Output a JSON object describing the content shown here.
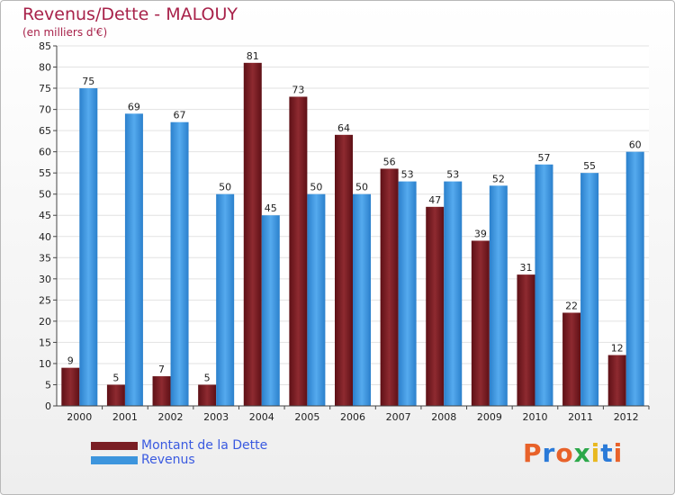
{
  "header": {
    "title": "Revenus/Dette - MALOUY",
    "subtitle": "(en milliers d'€)"
  },
  "logo": {
    "text": "Proxiti",
    "colors": [
      "#e8622a",
      "#2a7ad8",
      "#e8622a",
      "#2ca84a",
      "#e8b820",
      "#2a7ad8",
      "#e8622a"
    ]
  },
  "chart_data": {
    "type": "bar",
    "title": "Revenus/Dette - MALOUY",
    "subtitle": "(en milliers d'€)",
    "categories": [
      "2000",
      "2001",
      "2002",
      "2003",
      "2004",
      "2005",
      "2006",
      "2007",
      "2008",
      "2009",
      "2010",
      "2011",
      "2012"
    ],
    "series": [
      {
        "name": "Montant de la Dette",
        "values": [
          9,
          5,
          7,
          5,
          81,
          73,
          64,
          56,
          47,
          39,
          31,
          22,
          12
        ],
        "color": "#7a1e24"
      },
      {
        "name": "Revenus",
        "values": [
          75,
          69,
          67,
          50,
          45,
          50,
          50,
          53,
          53,
          52,
          57,
          55,
          60
        ],
        "color": "#3d95dd"
      }
    ],
    "ylim": [
      0,
      85
    ],
    "yticks": [
      0,
      5,
      10,
      15,
      20,
      25,
      30,
      35,
      40,
      45,
      50,
      55,
      60,
      65,
      70,
      75,
      80,
      85
    ],
    "grid": true,
    "legend_position": "bottom-left"
  }
}
